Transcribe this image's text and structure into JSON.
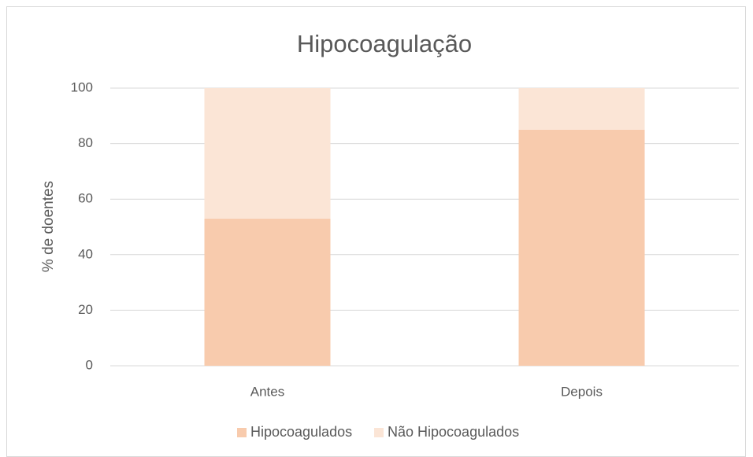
{
  "chart_data": {
    "type": "bar",
    "stacked": true,
    "title": "Hipocoagulação",
    "ylabel": "% de doentes",
    "categories": [
      "Antes",
      "Depois"
    ],
    "series": [
      {
        "name": "Hipocoagulados",
        "color": "#f8cbad",
        "values": [
          53,
          85
        ]
      },
      {
        "name": "Não Hipocoagulados",
        "color": "#fbe5d6",
        "values": [
          47,
          15
        ]
      }
    ],
    "ylim": [
      0,
      100
    ],
    "yticks": [
      0,
      20,
      40,
      60,
      80,
      100
    ],
    "grid": true,
    "legend": "bottom"
  }
}
